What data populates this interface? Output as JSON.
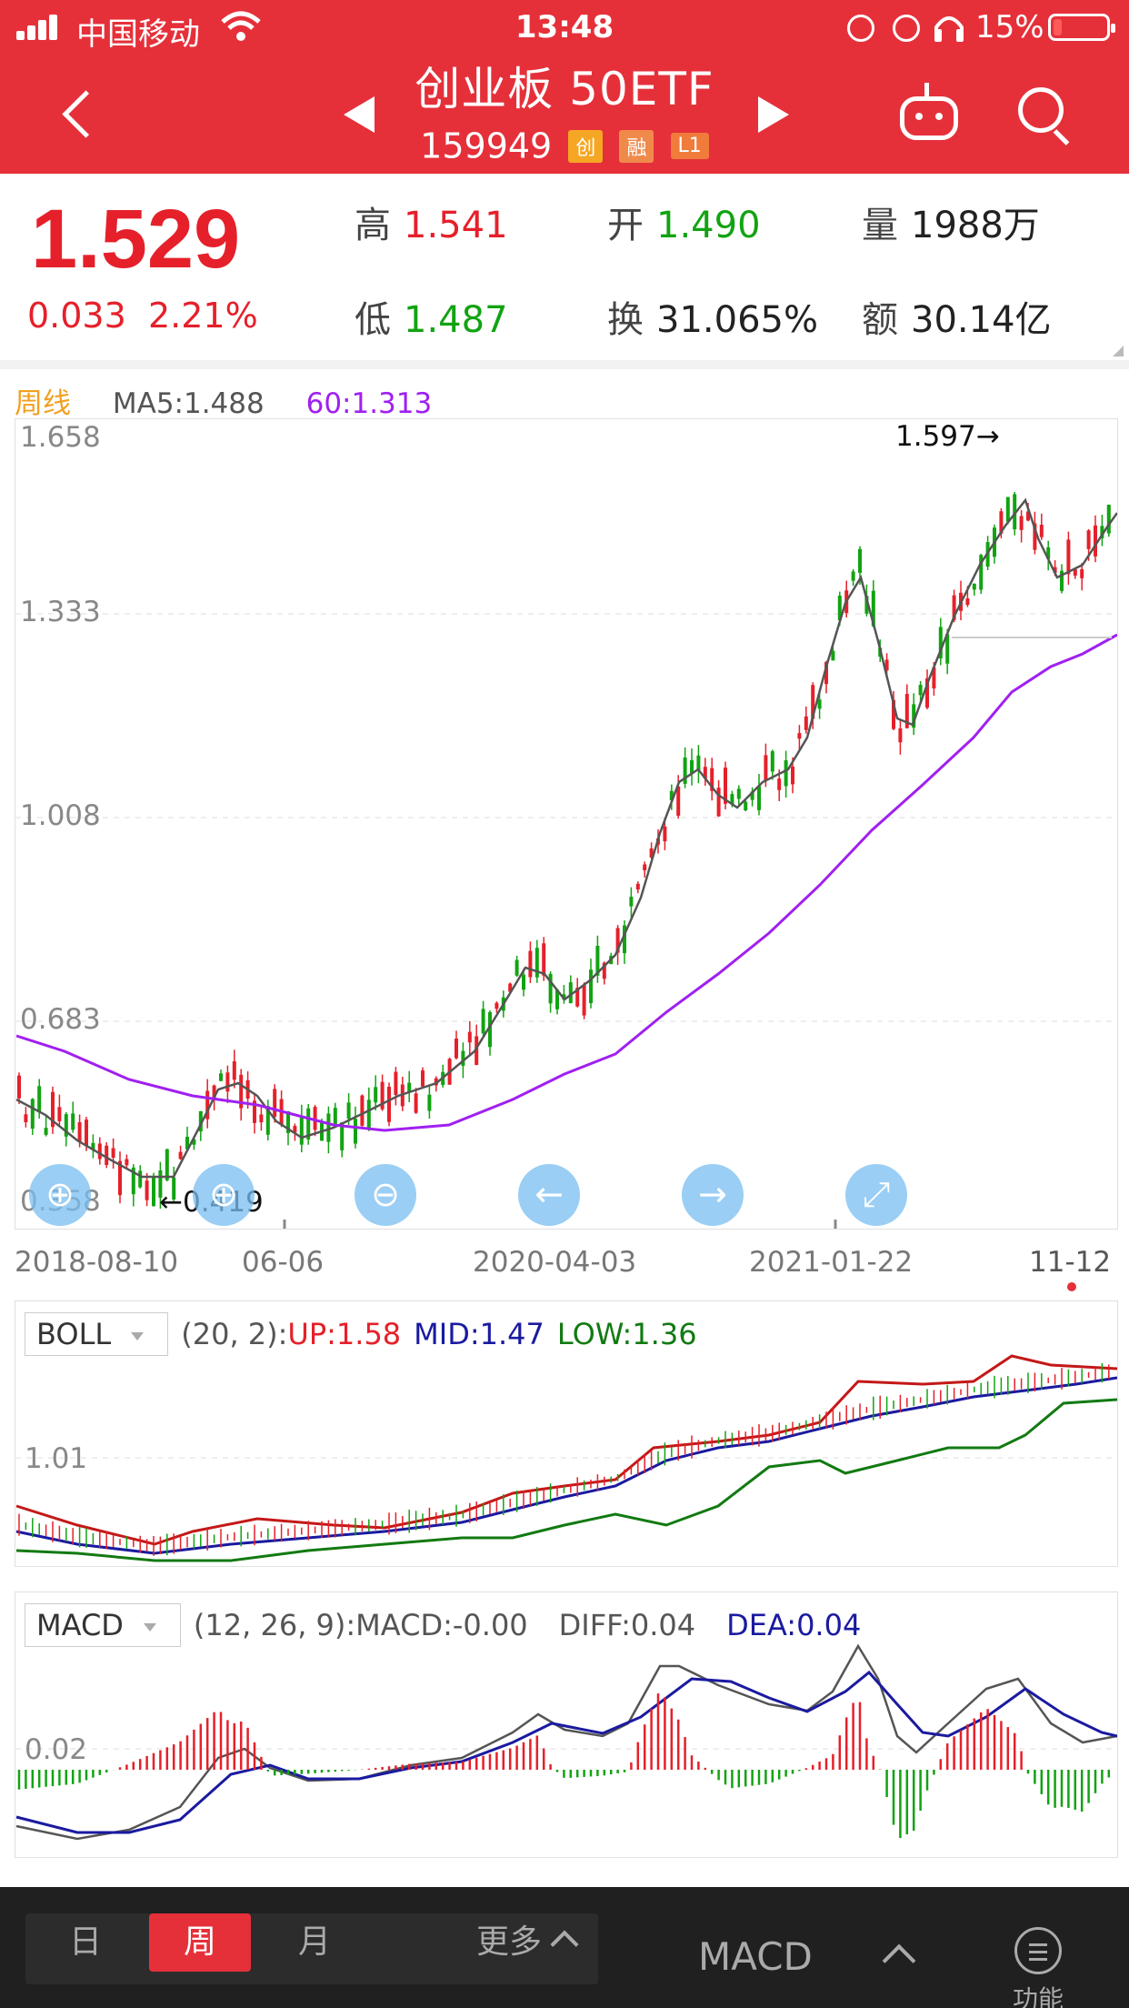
{
  "status_bar": {
    "carrier": "中国移动",
    "time": "13:48",
    "battery": "15%"
  },
  "header": {
    "title": "创业板 50ETF",
    "code": "159949",
    "badges": [
      "创",
      "融",
      "L1"
    ]
  },
  "quote": {
    "price": "1.529",
    "change": "0.033",
    "change_pct": "2.21%",
    "high_label": "高",
    "high": "1.541",
    "open_label": "开",
    "open": "1.490",
    "volume_label": "量",
    "volume": "1988万",
    "low_label": "低",
    "low": "1.487",
    "turnover_label": "换",
    "turnover": "31.065%",
    "amount_label": "额",
    "amount": "30.14亿"
  },
  "legend": {
    "period": "周线",
    "ma5": "MA5:1.488",
    "ma60": "60:1.313"
  },
  "main_chart": {
    "y_labels": [
      "1.658",
      "1.333",
      "1.008",
      "0.683",
      "0.358"
    ],
    "max_marker": "1.597→",
    "min_marker": "←0.419",
    "x_labels": [
      "2018-08-10",
      "06-06",
      "2020-04-03",
      "2021-01-22",
      "11-12"
    ]
  },
  "boll": {
    "name": "BOLL",
    "params": "(20, 2):",
    "up": "UP:1.58",
    "mid": "MID:1.47",
    "low": "LOW:1.36",
    "y_label": "1.01"
  },
  "macd": {
    "name": "MACD",
    "params": "(12, 26, 9):MACD:-0.00",
    "diff": "DIFF:0.04",
    "dea": "DEA:0.04",
    "y_label": "0.02"
  },
  "bottom_bar": {
    "day": "日",
    "week": "周",
    "month": "月",
    "more": "更多",
    "indicator": "MACD",
    "function": "功能"
  },
  "colors": {
    "up": "#e5202a",
    "down": "#12a312",
    "header": "#e5303a",
    "ma60": "#a020f0",
    "boll_mid": "#1a1aa0"
  }
}
